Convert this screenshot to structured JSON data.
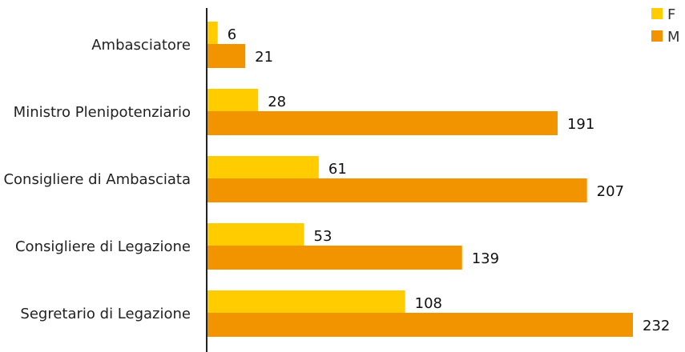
{
  "chart_data": {
    "type": "bar",
    "orientation": "horizontal",
    "categories": [
      "Ambasciatore",
      "Ministro Plenipotenziario",
      "Consigliere di Ambasciata",
      "Consigliere di Legazione",
      "Segretario di Legazione"
    ],
    "series": [
      {
        "name": "F",
        "values": [
          6,
          28,
          61,
          53,
          108
        ],
        "color": "#FFCC00"
      },
      {
        "name": "M",
        "values": [
          21,
          191,
          207,
          139,
          232
        ],
        "color": "#F29400"
      }
    ],
    "title": "",
    "xlabel": "",
    "ylabel": "",
    "xlim": [
      0,
      232
    ],
    "grid": false,
    "legend": "top-right",
    "data_labels": true,
    "axis_color": "#222222"
  }
}
